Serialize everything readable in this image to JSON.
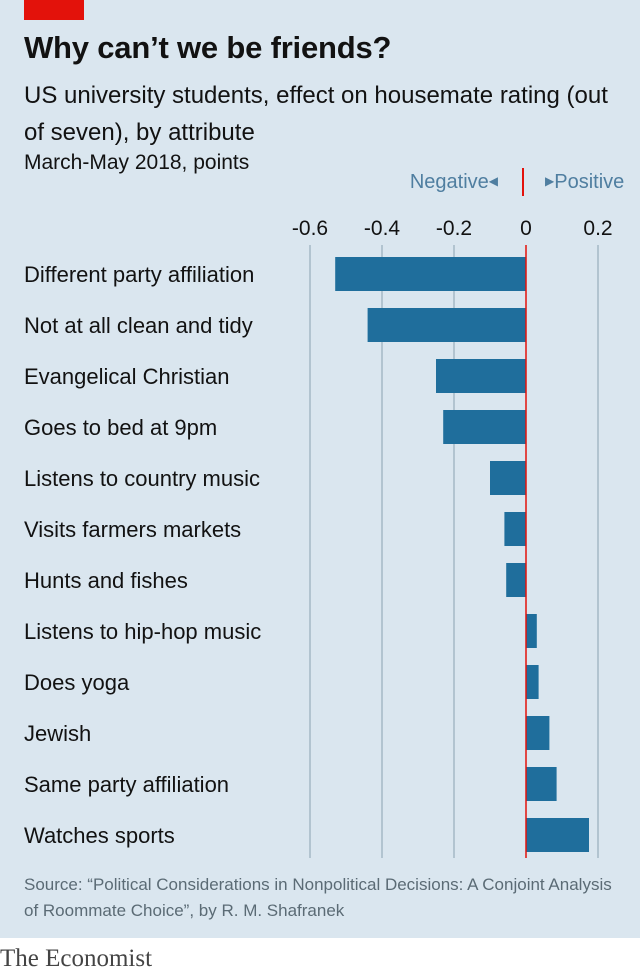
{
  "header": {
    "title": "Why can’t we be friends?",
    "subtitle": "US university students, effect on housemate rating (out of seven), by attribute",
    "unit": "March-May 2018, points"
  },
  "legend": {
    "negative": "Negative",
    "positive": "Positive"
  },
  "colors": {
    "bar": "#1f6e9c",
    "zero_line": "#e3120b",
    "grid": "#a5b8c5",
    "background": "#dae6ef",
    "accent": "#e3120b"
  },
  "footer": {
    "source": "Source: “Political Considerations in Nonpolitical Decisions: A Conjoint Analysis of Roommate Choice”, by R. M. Shafranek",
    "brand": "The Economist"
  },
  "chart_data": {
    "type": "bar",
    "orientation": "horizontal",
    "xlim": [
      -0.6,
      0.2
    ],
    "xticks": [
      -0.6,
      -0.4,
      -0.2,
      0,
      0.2
    ],
    "xtick_labels": [
      "-0.6",
      "-0.4",
      "-0.2",
      "0",
      "0.2"
    ],
    "grid": true,
    "categories": [
      "Different party affiliation",
      "Not at all clean and tidy",
      "Evangelical Christian",
      "Goes to bed at 9pm",
      "Listens to country music",
      "Visits farmers markets",
      "Hunts and fishes",
      "Listens to hip-hop music",
      "Does yoga",
      "Jewish",
      "Same party affiliation",
      "Watches sports"
    ],
    "values": [
      -0.53,
      -0.44,
      -0.25,
      -0.23,
      -0.1,
      -0.06,
      -0.055,
      0.03,
      0.035,
      0.065,
      0.085,
      0.175
    ]
  }
}
